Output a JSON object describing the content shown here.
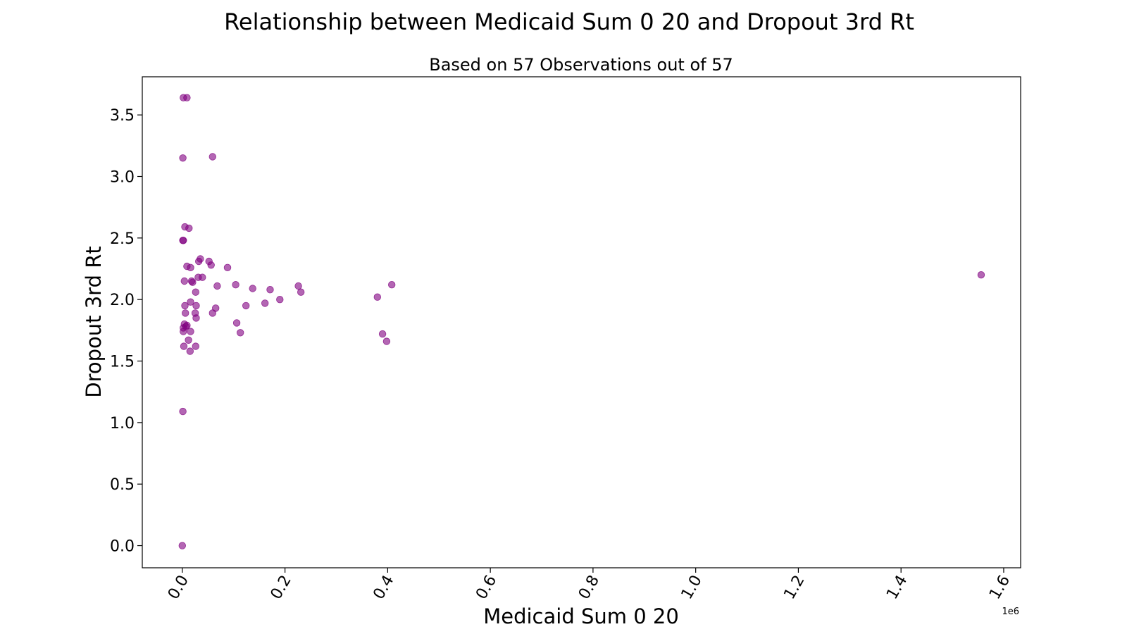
{
  "chart_data": {
    "type": "scatter",
    "title": "Relationship between Medicaid Sum 0 20 and Dropout 3rd Rt",
    "subtitle": "Based on 57 Observations out of 57",
    "xlabel": "Medicaid Sum 0 20",
    "ylabel": "Dropout 3rd Rt",
    "x_offset_label": "1e6",
    "xlim": [
      -0.078,
      1.633
    ],
    "ylim": [
      -0.18,
      3.81
    ],
    "xticks": [
      0.0,
      0.2,
      0.4,
      0.6,
      0.8,
      1.0,
      1.2,
      1.4,
      1.6
    ],
    "xtick_labels": [
      "0.0",
      "0.2",
      "0.4",
      "0.6",
      "0.8",
      "1.0",
      "1.2",
      "1.4",
      "1.6"
    ],
    "yticks": [
      0.0,
      0.5,
      1.0,
      1.5,
      2.0,
      2.5,
      3.0,
      3.5
    ],
    "ytick_labels": [
      "0.0",
      "0.5",
      "1.0",
      "1.5",
      "2.0",
      "2.5",
      "3.0",
      "3.5"
    ],
    "grid": false,
    "legend": "none",
    "marker_color": "#800080",
    "points": [
      {
        "x": 0.002,
        "y": 3.64
      },
      {
        "x": 0.009,
        "y": 3.64
      },
      {
        "x": 0.001,
        "y": 3.15
      },
      {
        "x": 0.059,
        "y": 3.16
      },
      {
        "x": 0.005,
        "y": 2.59
      },
      {
        "x": 0.013,
        "y": 2.58
      },
      {
        "x": 0.001,
        "y": 2.48
      },
      {
        "x": 0.002,
        "y": 2.48
      },
      {
        "x": 0.035,
        "y": 2.33
      },
      {
        "x": 0.032,
        "y": 2.31
      },
      {
        "x": 0.052,
        "y": 2.31
      },
      {
        "x": 0.056,
        "y": 2.28
      },
      {
        "x": 0.009,
        "y": 2.27
      },
      {
        "x": 0.016,
        "y": 2.26
      },
      {
        "x": 0.088,
        "y": 2.26
      },
      {
        "x": 0.031,
        "y": 2.18
      },
      {
        "x": 0.039,
        "y": 2.18
      },
      {
        "x": 0.004,
        "y": 2.15
      },
      {
        "x": 0.018,
        "y": 2.15
      },
      {
        "x": 0.02,
        "y": 2.14
      },
      {
        "x": 0.068,
        "y": 2.11
      },
      {
        "x": 0.104,
        "y": 2.12
      },
      {
        "x": 0.137,
        "y": 2.09
      },
      {
        "x": 0.171,
        "y": 2.08
      },
      {
        "x": 0.226,
        "y": 2.11
      },
      {
        "x": 0.231,
        "y": 2.06
      },
      {
        "x": 0.408,
        "y": 2.12
      },
      {
        "x": 0.38,
        "y": 2.02
      },
      {
        "x": 0.026,
        "y": 2.06
      },
      {
        "x": 0.016,
        "y": 1.98
      },
      {
        "x": 0.19,
        "y": 2.0
      },
      {
        "x": 0.161,
        "y": 1.97
      },
      {
        "x": 0.124,
        "y": 1.95
      },
      {
        "x": 0.005,
        "y": 1.95
      },
      {
        "x": 0.027,
        "y": 1.95
      },
      {
        "x": 0.065,
        "y": 1.93
      },
      {
        "x": 0.006,
        "y": 1.89
      },
      {
        "x": 0.025,
        "y": 1.89
      },
      {
        "x": 0.059,
        "y": 1.89
      },
      {
        "x": 0.027,
        "y": 1.85
      },
      {
        "x": 0.106,
        "y": 1.81
      },
      {
        "x": 0.004,
        "y": 1.8
      },
      {
        "x": 0.009,
        "y": 1.79
      },
      {
        "x": 0.002,
        "y": 1.77
      },
      {
        "x": 0.002,
        "y": 1.74
      },
      {
        "x": 0.016,
        "y": 1.74
      },
      {
        "x": 0.113,
        "y": 1.73
      },
      {
        "x": 0.39,
        "y": 1.72
      },
      {
        "x": 0.012,
        "y": 1.67
      },
      {
        "x": 0.398,
        "y": 1.66
      },
      {
        "x": 0.003,
        "y": 1.62
      },
      {
        "x": 0.026,
        "y": 1.62
      },
      {
        "x": 0.015,
        "y": 1.58
      },
      {
        "x": 0.001,
        "y": 1.09
      },
      {
        "x": 0.0,
        "y": 0.0
      },
      {
        "x": 1.556,
        "y": 2.2
      },
      {
        "x": 0.007,
        "y": 1.78
      }
    ]
  }
}
